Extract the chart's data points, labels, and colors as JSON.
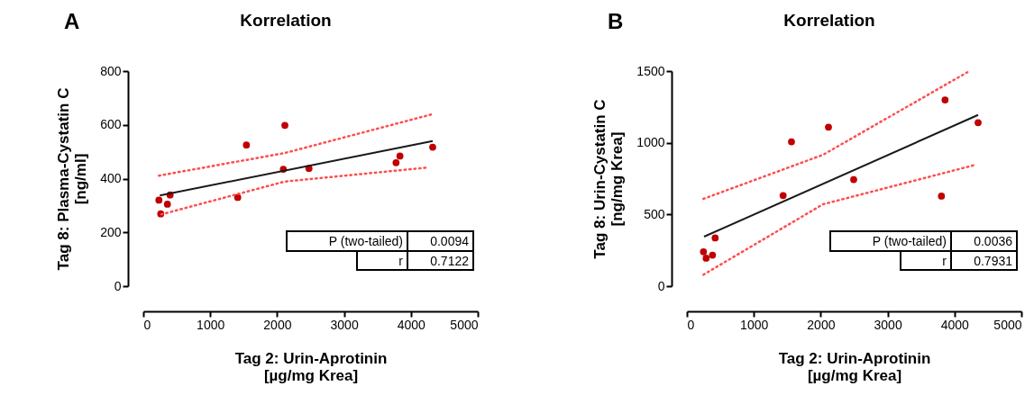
{
  "chart_data": [
    {
      "type": "scatter",
      "title": "Korrelation",
      "xlabel": "Tag 2: Urin-Aprotinin\n[µg/mg Krea]",
      "ylabel": "Tag 8: Plasma-Cystatin C\n[ng/ml]",
      "xlim": [
        0,
        5000
      ],
      "xticks": [
        0,
        1000,
        2000,
        3000,
        4000,
        5000
      ],
      "ylim": [
        0,
        800
      ],
      "yticks": [
        0,
        200,
        400,
        600,
        800
      ],
      "grid": false,
      "annotations": [
        "A",
        "P (two-tailed)",
        "0.0094",
        "r",
        "0.7122"
      ],
      "series": [
        {
          "type": "scatter",
          "color": "#c00000",
          "marker": "circle",
          "x": [
            233,
            400,
            360,
            260,
            1411,
            1541,
            2116,
            2093,
            2476,
            3778,
            3836,
            4326
          ],
          "values": [
            320,
            339,
            305,
            269,
            330,
            525,
            598,
            435,
            438,
            459,
            484,
            517
          ]
        },
        {
          "type": "line",
          "color": "#1a1a1a",
          "line_style": "solid",
          "x": [
            247,
            4326
          ],
          "values": [
            337,
            540
          ]
        },
        {
          "type": "line",
          "color": "#ff4d4d",
          "line_style": "dotted",
          "x": [
            233,
            2112,
            4326
          ],
          "values": [
            411,
            495,
            640
          ]
        },
        {
          "type": "line",
          "color": "#ff4d4d",
          "line_style": "dotted",
          "x": [
            270,
            2112,
            4245
          ],
          "values": [
            267,
            389,
            441
          ]
        }
      ]
    },
    {
      "type": "scatter",
      "title": "Korrelation",
      "xlabel": "Tag 2: Urin-Aprotinin\n[µg/mg Krea]",
      "ylabel": "Tag 8: Urin-Cystatin C\n[ng/mg Krea]",
      "xlim": [
        0,
        5000
      ],
      "xticks": [
        0,
        1000,
        2000,
        3000,
        4000,
        5000
      ],
      "ylim": [
        0,
        1500
      ],
      "yticks": [
        0,
        500,
        1000,
        1500
      ],
      "grid": false,
      "annotations": [
        "B",
        "P (two-tailed)",
        "0.0036",
        "r",
        "0.7931"
      ],
      "series": [
        {
          "type": "scatter",
          "color": "#c00000",
          "marker": "circle",
          "x": [
            247,
            287,
            382,
            422,
            1438,
            1563,
            2116,
            2493,
            3805,
            3859,
            4353
          ],
          "values": [
            240,
            195,
            216,
            336,
            632,
            1007,
            1109,
            743,
            628,
            1299,
            1140
          ]
        },
        {
          "type": "line",
          "color": "#1a1a1a",
          "line_style": "solid",
          "x": [
            256,
            4353
          ],
          "values": [
            345,
            1194
          ]
        },
        {
          "type": "line",
          "color": "#ff4d4d",
          "line_style": "dotted",
          "x": [
            247,
            2034,
            4208
          ],
          "values": [
            609,
            916,
            1496
          ]
        },
        {
          "type": "line",
          "color": "#ff4d4d",
          "line_style": "dotted",
          "x": [
            247,
            2034,
            4322
          ],
          "values": [
            80,
            571,
            847
          ]
        }
      ]
    }
  ]
}
